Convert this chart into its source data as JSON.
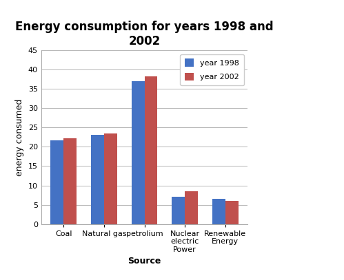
{
  "title": "Energy consumption for years 1998 and\n2002",
  "categories": [
    "Coal",
    "Natural gas",
    "petrolium",
    "Nuclear\nelectric\nPower",
    "Renewable\nEnergy"
  ],
  "year1998": [
    21.7,
    23.2,
    37.0,
    7.1,
    6.6
  ],
  "year2002": [
    22.2,
    23.4,
    38.3,
    8.4,
    6.0
  ],
  "color_1998": "#4472C4",
  "color_2002": "#C0504D",
  "xlabel": "Source",
  "ylabel": "energy consumed",
  "ylim": [
    0,
    45
  ],
  "yticks": [
    0,
    5,
    10,
    15,
    20,
    25,
    30,
    35,
    40,
    45
  ],
  "legend_labels": [
    "year 1998",
    "year 2002"
  ],
  "title_fontsize": 12,
  "axis_label_fontsize": 9,
  "tick_fontsize": 8,
  "legend_fontsize": 8,
  "bar_width": 0.32
}
